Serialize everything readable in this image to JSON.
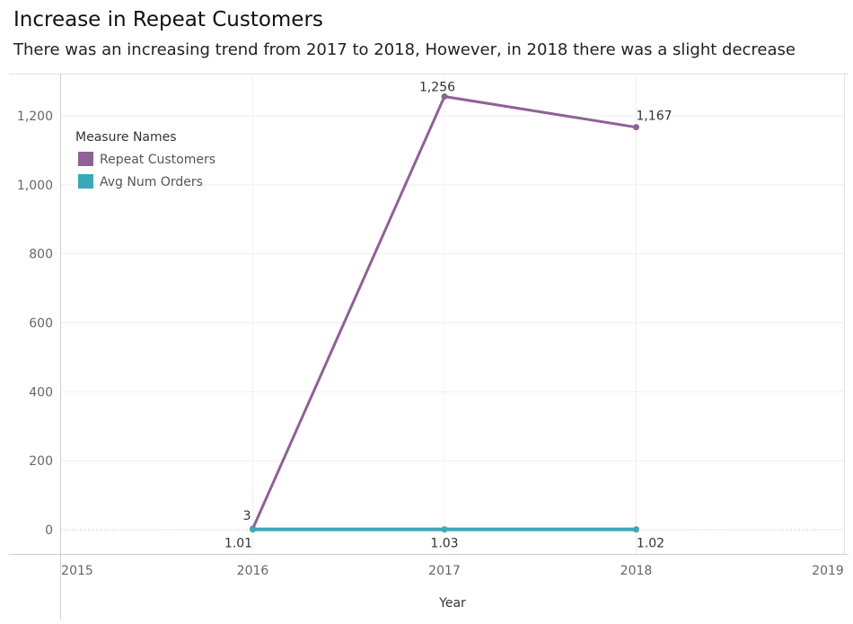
{
  "chart_data": {
    "type": "line",
    "title": "Increase in Repeat Customers",
    "subtitle": "There was an increasing trend from 2017 to 2018, However, in 2018 there was a slight decrease",
    "xlabel": "Year",
    "ylabel": "",
    "x": [
      2016,
      2017,
      2018
    ],
    "x_ticks": [
      "2015",
      "2016",
      "2017",
      "2018",
      "2019"
    ],
    "xlim": [
      2015,
      2019
    ],
    "y_ticks": [
      "0",
      "200",
      "400",
      "600",
      "800",
      "1,000",
      "1,200"
    ],
    "ylim": [
      -3,
      1256
    ],
    "legend": {
      "title": "Measure Names",
      "position": "top-left"
    },
    "grid": true,
    "series": [
      {
        "name": "Repeat Customers",
        "color": "#8f6196",
        "values": [
          3,
          1256,
          1167
        ],
        "labels": [
          "3",
          "1,256",
          "1,167"
        ]
      },
      {
        "name": "Avg Num Orders",
        "color": "#3aa9b9",
        "values": [
          1.01,
          1.03,
          1.02
        ],
        "labels": [
          "1.01",
          "1.03",
          "1.02"
        ]
      }
    ]
  }
}
